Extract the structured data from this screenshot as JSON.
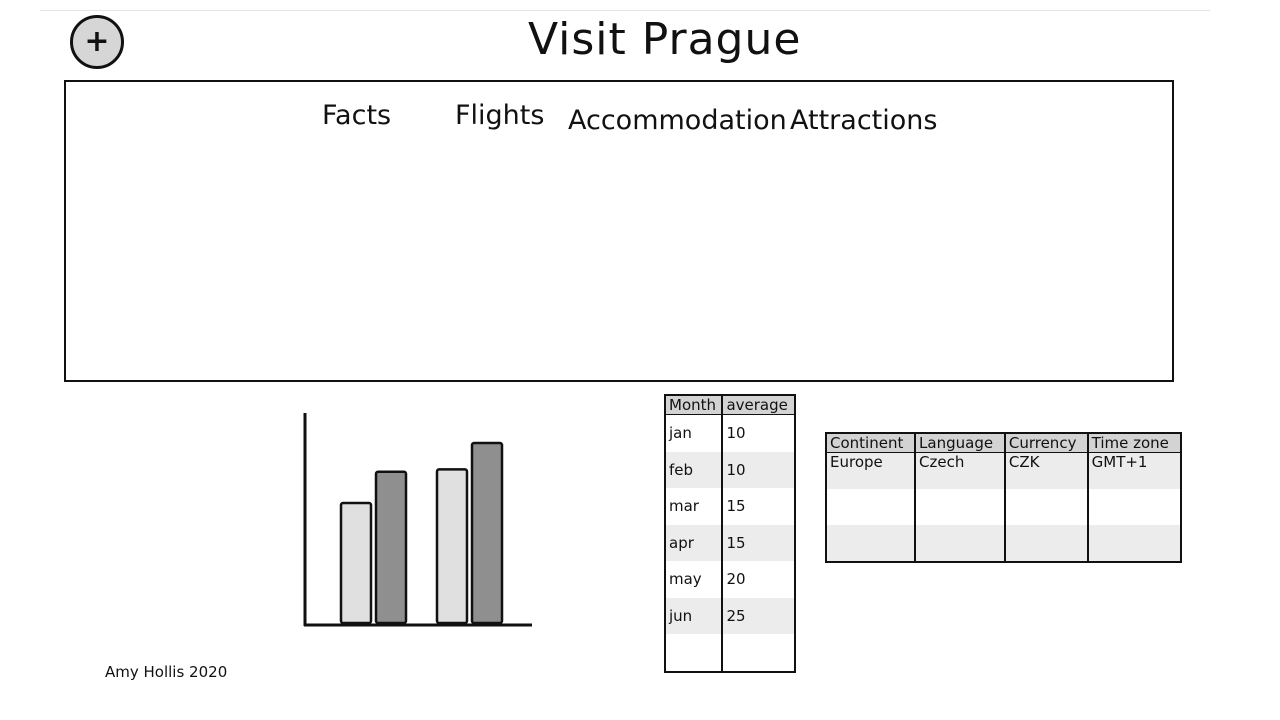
{
  "header": {
    "add_button_label": "+",
    "title": "Visit Prague"
  },
  "nav": {
    "tabs": [
      {
        "label": "Facts"
      },
      {
        "label": "Flights"
      },
      {
        "label": "Accommodation"
      },
      {
        "label": "Attractions"
      }
    ]
  },
  "chart_data": {
    "type": "bar",
    "title": "",
    "xlabel": "",
    "ylabel": "",
    "categories": [
      "",
      ""
    ],
    "series": [
      {
        "values": [
          100,
          128
        ]
      },
      {
        "values": [
          126,
          150
        ]
      }
    ],
    "ylim": [
      0,
      175
    ],
    "colors": [
      "#e0e0e0",
      "#8f8f8f"
    ],
    "grid": false,
    "legend": "none"
  },
  "climate_table": {
    "headers": [
      "Month",
      "average"
    ],
    "rows": [
      [
        "jan",
        "10"
      ],
      [
        "feb",
        "10"
      ],
      [
        "mar",
        "15"
      ],
      [
        "apr",
        "15"
      ],
      [
        "may",
        "20"
      ],
      [
        "jun",
        "25"
      ],
      [
        "",
        ""
      ]
    ]
  },
  "facts_table": {
    "headers": [
      "Continent",
      "Language",
      "Currency",
      "Time zone"
    ],
    "rows": [
      [
        "Europe",
        "Czech",
        "CZK",
        "GMT+1"
      ],
      [
        "",
        "",
        "",
        ""
      ],
      [
        "",
        "",
        "",
        ""
      ]
    ]
  },
  "footer": {
    "credit": "Amy Hollis 2020"
  }
}
